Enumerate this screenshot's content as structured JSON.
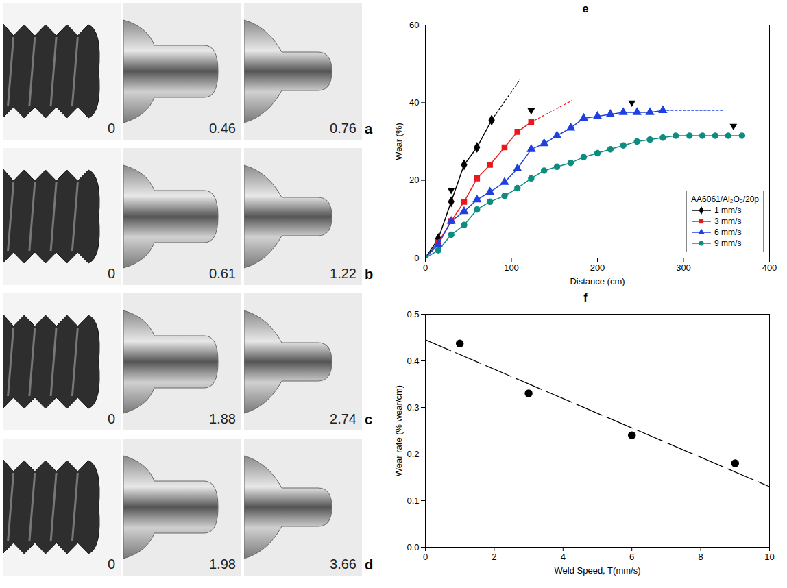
{
  "pin_photos": [
    {
      "label": "a",
      "values": [
        0,
        0.46,
        0.76
      ]
    },
    {
      "label": "b",
      "values": [
        0,
        0.61,
        1.22
      ]
    },
    {
      "label": "c",
      "values": [
        0,
        1.88,
        2.74
      ]
    },
    {
      "label": "d",
      "values": [
        0,
        1.98,
        3.66
      ]
    }
  ],
  "chart_data": [
    {
      "type": "line",
      "title": "e",
      "x_label": "Distance (cm)",
      "y_label": "Wear (%)",
      "xlim": [
        0,
        400
      ],
      "xticks": [
        0,
        100,
        200,
        300,
        400
      ],
      "ylim": [
        0,
        60
      ],
      "yticks": [
        0,
        20,
        40,
        60
      ],
      "legend": "bottom-right",
      "legend_title": "AA6061/Al₂O₃/20p",
      "series": [
        {
          "name": "1 mm/s",
          "color": "#000000",
          "marker": "diamond",
          "x": [
            0,
            15,
            30,
            45,
            60,
            77
          ],
          "values": [
            0,
            5,
            14.5,
            24,
            28.5,
            35.5
          ],
          "extension_x": [
            77,
            110
          ],
          "extension_values": [
            35.5,
            46
          ]
        },
        {
          "name": "3 mm/s",
          "color": "#e8191c",
          "marker": "square",
          "x": [
            0,
            15,
            30,
            45,
            60,
            75,
            92,
            107,
            123
          ],
          "values": [
            0,
            4,
            9.5,
            14.5,
            20.5,
            24,
            28.5,
            32.5,
            35
          ],
          "extension_x": [
            123,
            170
          ],
          "extension_values": [
            35,
            40.5
          ]
        },
        {
          "name": "6 mm/s",
          "color": "#1f3fe0",
          "marker": "triangle",
          "x": [
            0,
            15,
            30,
            45,
            60,
            75,
            92,
            107,
            123,
            138,
            153,
            169,
            184,
            200,
            215,
            230,
            246,
            261,
            276
          ],
          "values": [
            0,
            3.5,
            9.5,
            12,
            15,
            17,
            19.5,
            23,
            28,
            29.5,
            31.5,
            33.5,
            36,
            36.5,
            37,
            37.5,
            37.5,
            37.5,
            38
          ],
          "extension_x": [
            276,
            345
          ],
          "extension_values": [
            38,
            38
          ]
        },
        {
          "name": "9 mm/s",
          "color": "#0f8c80",
          "marker": "circle",
          "x": [
            0,
            15,
            30,
            45,
            60,
            75,
            92,
            107,
            123,
            138,
            153,
            169,
            184,
            200,
            215,
            230,
            246,
            261,
            276,
            291,
            307,
            322,
            337,
            352,
            368
          ],
          "values": [
            0,
            2,
            6,
            8.5,
            12.5,
            14.5,
            16,
            18,
            20.5,
            22.5,
            23.5,
            24.5,
            26,
            27,
            28,
            29,
            30,
            30.5,
            31,
            31.5,
            31.5,
            31.5,
            31.5,
            31.5,
            31.5
          ],
          "extension_x": [],
          "extension_values": []
        }
      ],
      "arrow_markers": {
        "color": "#000000",
        "x": [
          30,
          123,
          240,
          358
        ],
        "values": [
          17.5,
          38,
          40,
          34
        ]
      }
    },
    {
      "type": "scatter",
      "title": "f",
      "x_label": "Weld Speed, T(mm/s)",
      "y_label": "Wear rate (% wear/cm)",
      "xlim": [
        0,
        10
      ],
      "xticks": [
        0,
        2,
        4,
        6,
        8,
        10
      ],
      "ylim": [
        0,
        0.5
      ],
      "yticks": [
        {
          "value": 0,
          "label": "0.0"
        },
        0.1,
        0.2,
        0.3,
        0.4,
        0.5
      ],
      "color": "#000000",
      "marker": "circle",
      "x": [
        1,
        3,
        6,
        9
      ],
      "values": [
        0.437,
        0.33,
        0.24,
        0.18
      ],
      "fit_line": {
        "line_style": "dashed",
        "color": "#000000",
        "x": [
          0,
          10
        ],
        "values": [
          0.445,
          0.13
        ]
      }
    }
  ]
}
